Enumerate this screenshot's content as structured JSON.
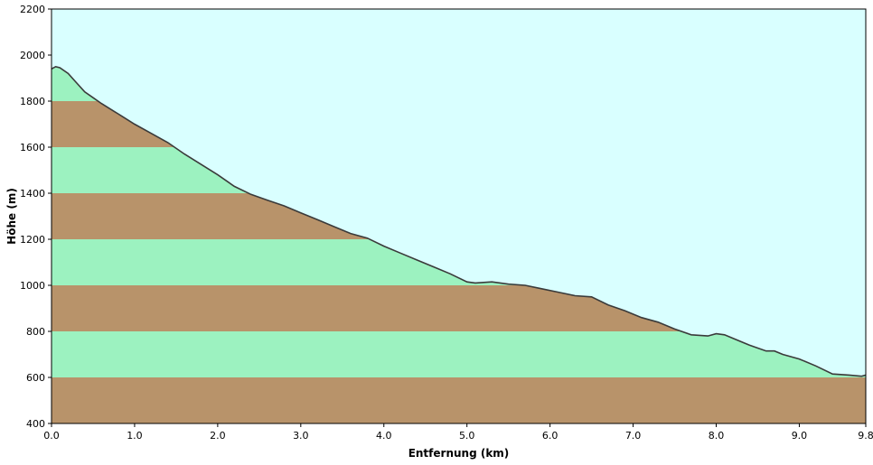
{
  "chart_data": {
    "type": "area",
    "title": "",
    "xlabel": "Entfernung   (km)",
    "ylabel": "Höhe (m)",
    "xlim": [
      0,
      9.8
    ],
    "ylim": [
      400,
      2200
    ],
    "x_ticks": [
      {
        "value": 0,
        "label": "0.0"
      },
      {
        "value": 1,
        "label": "1.0"
      },
      {
        "value": 2,
        "label": "2.0"
      },
      {
        "value": 3,
        "label": "3.0"
      },
      {
        "value": 4,
        "label": "4.0"
      },
      {
        "value": 5,
        "label": "5.0"
      },
      {
        "value": 6,
        "label": "6.0"
      },
      {
        "value": 7,
        "label": "7.0"
      },
      {
        "value": 8,
        "label": "8.0"
      },
      {
        "value": 9,
        "label": "9.0"
      },
      {
        "value": 9.8,
        "label": "9.8"
      }
    ],
    "y_ticks": [
      {
        "value": 400,
        "label": "400"
      },
      {
        "value": 600,
        "label": "600"
      },
      {
        "value": 800,
        "label": "800"
      },
      {
        "value": 1000,
        "label": "1000"
      },
      {
        "value": 1200,
        "label": "1200"
      },
      {
        "value": 1400,
        "label": "1400"
      },
      {
        "value": 1600,
        "label": "1600"
      },
      {
        "value": 1800,
        "label": "1800"
      },
      {
        "value": 2000,
        "label": "2000"
      },
      {
        "value": 2200,
        "label": "2200"
      }
    ],
    "band_step": 200,
    "colors": {
      "sky": "#d9ffff",
      "band_brown": "#b8936a",
      "band_green": "#9cf2c0",
      "profile_line": "#3a3a3a",
      "axis": "#000000"
    },
    "profile": {
      "x": [
        0.0,
        0.05,
        0.1,
        0.2,
        0.3,
        0.4,
        0.5,
        0.6,
        0.8,
        1.0,
        1.2,
        1.4,
        1.6,
        1.8,
        2.0,
        2.2,
        2.4,
        2.6,
        2.8,
        3.0,
        3.2,
        3.4,
        3.6,
        3.8,
        4.0,
        4.2,
        4.4,
        4.6,
        4.8,
        5.0,
        5.1,
        5.3,
        5.5,
        5.7,
        5.9,
        6.1,
        6.3,
        6.5,
        6.7,
        6.9,
        7.1,
        7.3,
        7.5,
        7.7,
        7.9,
        8.0,
        8.1,
        8.2,
        8.4,
        8.6,
        8.7,
        8.8,
        9.0,
        9.2,
        9.4,
        9.6,
        9.75,
        9.8
      ],
      "y": [
        1940,
        1950,
        1945,
        1920,
        1880,
        1840,
        1815,
        1790,
        1745,
        1700,
        1660,
        1620,
        1570,
        1525,
        1480,
        1430,
        1395,
        1370,
        1345,
        1315,
        1285,
        1255,
        1225,
        1205,
        1170,
        1140,
        1110,
        1080,
        1050,
        1015,
        1010,
        1015,
        1005,
        1000,
        985,
        970,
        955,
        950,
        915,
        890,
        860,
        840,
        810,
        785,
        780,
        790,
        785,
        770,
        740,
        715,
        715,
        700,
        680,
        650,
        615,
        610,
        605,
        610
      ]
    }
  }
}
